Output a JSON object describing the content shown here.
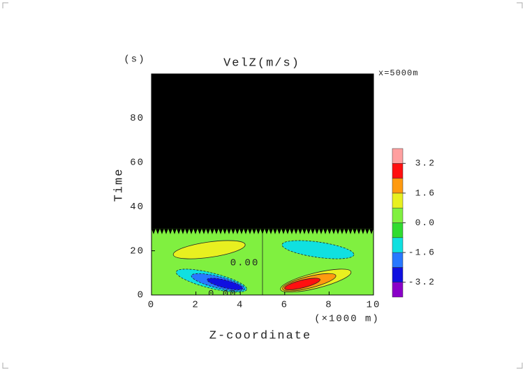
{
  "chart_data": {
    "type": "contour",
    "title": "VelZ(m/s)",
    "xlabel": "Z-coordinate",
    "xunit": "(×1000 m)",
    "ylabel": "Time",
    "yunit": "(s)",
    "annotation": "x=5000m",
    "xlim": [
      0,
      10
    ],
    "xticks": [
      0,
      2,
      4,
      6,
      8,
      10
    ],
    "ylim": [
      0,
      100
    ],
    "yticks": [
      0,
      20,
      40,
      60,
      80
    ],
    "levels": [
      -4,
      -3.2,
      -2.4,
      -1.6,
      -0.8,
      0,
      0.8,
      1.6,
      2.4,
      3.2,
      4
    ],
    "colors": [
      "#8a00c8",
      "#1010e0",
      "#2878ff",
      "#10e0e0",
      "#30dc30",
      "#80f040",
      "#e8f020",
      "#ff9a10",
      "#ff1010",
      "#ffa0a0"
    ],
    "cticks": [
      3.2,
      1.6,
      {
        "value": 0,
        "label": "0.0"
      },
      -1.6,
      -3.2
    ],
    "background": 0,
    "noise_from": 30,
    "blobs": [
      {
        "x": 2.6,
        "y": 20.5,
        "value": 1.5
      },
      {
        "x": 7.5,
        "y": 20.5,
        "value": -1.5
      },
      {
        "x": 2.7,
        "y": 6.5,
        "value": -3.0
      },
      {
        "x": 7.4,
        "y": 6.5,
        "value": 3.0
      }
    ],
    "contour_labels": [
      {
        "label": "0.00",
        "x": 4.2,
        "y": 14.5
      },
      {
        "label": "0.00",
        "x": 3.2,
        "y": 0.5
      }
    ]
  }
}
